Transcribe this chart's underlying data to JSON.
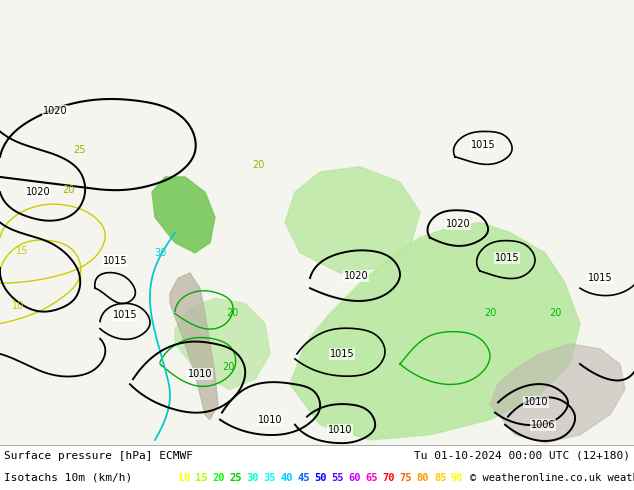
{
  "title_left": "Surface pressure [hPa] ECMWF",
  "title_right": "Tu 01-10-2024 00:00 UTC (12+180)",
  "legend_label": "Isotachs 10m (km/h)",
  "copyright": "© weatheronline.co.uk",
  "isotach_values": [
    10,
    15,
    20,
    25,
    30,
    35,
    40,
    45,
    50,
    55,
    60,
    65,
    70,
    75,
    80,
    85,
    90
  ],
  "isotach_colors": [
    "#ffff00",
    "#aaff00",
    "#00ff00",
    "#00cc00",
    "#00ffcc",
    "#00ffff",
    "#00ccff",
    "#0066ff",
    "#0000ff",
    "#6600ff",
    "#cc00ff",
    "#ff00cc",
    "#ff0000",
    "#ff6600",
    "#ff9900",
    "#ffcc00",
    "#ffff00"
  ],
  "bg_color": "#ffffff",
  "fig_width": 6.34,
  "fig_height": 4.9,
  "dpi": 100,
  "map_bg": "#f2f2f2",
  "land_color": "#c8e6c9",
  "sea_color": "#e3f2fd"
}
